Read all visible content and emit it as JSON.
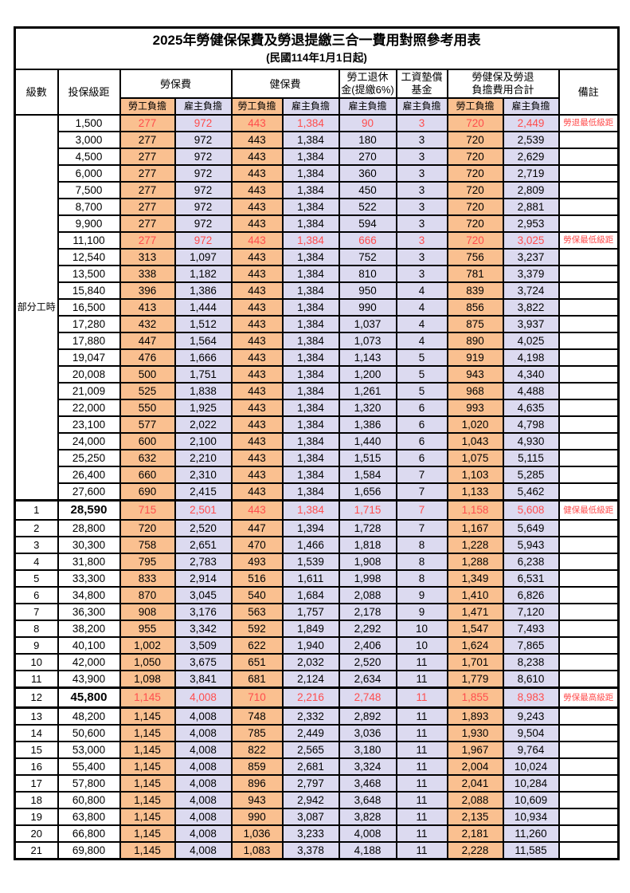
{
  "title": "2025年勞健保保費及勞退提繳三合一費用對照參考用表",
  "subtitle": "(民國114年1月1日起)",
  "colors": {
    "employee_bg": "#FAC090",
    "employer_bg": "#DCDAF0",
    "red_text": "#FF4D4D",
    "border": "#000000"
  },
  "header": {
    "level": "級數",
    "bracket": "投保級距",
    "labor_insurance": "勞保費",
    "health_insurance": "健保費",
    "pension_line1": "勞工退休",
    "pension_line2": "金(提繳6%)",
    "wage_fund_line1": "工資墊償",
    "wage_fund_line2": "基金",
    "total_line1": "勞健保及勞退",
    "total_line2": "負擔費用合計",
    "remark": "備註",
    "employee": "勞工負擔",
    "employer": "雇主負擔"
  },
  "part_time_label": "部分工時",
  "part_time_span": 23,
  "rows": [
    {
      "lv": "",
      "br": "1,500",
      "a": "277",
      "b": "972",
      "c": "443",
      "d": "1,384",
      "e": "90",
      "f": "3",
      "g": "720",
      "h": "2,449",
      "rm": "勞退最低級距",
      "red": true
    },
    {
      "lv": "",
      "br": "3,000",
      "a": "277",
      "b": "972",
      "c": "443",
      "d": "1,384",
      "e": "180",
      "f": "3",
      "g": "720",
      "h": "2,539",
      "rm": ""
    },
    {
      "lv": "",
      "br": "4,500",
      "a": "277",
      "b": "972",
      "c": "443",
      "d": "1,384",
      "e": "270",
      "f": "3",
      "g": "720",
      "h": "2,629",
      "rm": ""
    },
    {
      "lv": "",
      "br": "6,000",
      "a": "277",
      "b": "972",
      "c": "443",
      "d": "1,384",
      "e": "360",
      "f": "3",
      "g": "720",
      "h": "2,719",
      "rm": ""
    },
    {
      "lv": "",
      "br": "7,500",
      "a": "277",
      "b": "972",
      "c": "443",
      "d": "1,384",
      "e": "450",
      "f": "3",
      "g": "720",
      "h": "2,809",
      "rm": ""
    },
    {
      "lv": "",
      "br": "8,700",
      "a": "277",
      "b": "972",
      "c": "443",
      "d": "1,384",
      "e": "522",
      "f": "3",
      "g": "720",
      "h": "2,881",
      "rm": ""
    },
    {
      "lv": "",
      "br": "9,900",
      "a": "277",
      "b": "972",
      "c": "443",
      "d": "1,384",
      "e": "594",
      "f": "3",
      "g": "720",
      "h": "2,953",
      "rm": ""
    },
    {
      "lv": "",
      "br": "11,100",
      "a": "277",
      "b": "972",
      "c": "443",
      "d": "1,384",
      "e": "666",
      "f": "3",
      "g": "720",
      "h": "3,025",
      "rm": "勞保最低級距",
      "red": true
    },
    {
      "lv": "",
      "br": "12,540",
      "a": "313",
      "b": "1,097",
      "c": "443",
      "d": "1,384",
      "e": "752",
      "f": "3",
      "g": "756",
      "h": "3,237",
      "rm": ""
    },
    {
      "lv": "",
      "br": "13,500",
      "a": "338",
      "b": "1,182",
      "c": "443",
      "d": "1,384",
      "e": "810",
      "f": "3",
      "g": "781",
      "h": "3,379",
      "rm": ""
    },
    {
      "lv": "",
      "br": "15,840",
      "a": "396",
      "b": "1,386",
      "c": "443",
      "d": "1,384",
      "e": "950",
      "f": "4",
      "g": "839",
      "h": "3,724",
      "rm": ""
    },
    {
      "lv": "",
      "br": "16,500",
      "a": "413",
      "b": "1,444",
      "c": "443",
      "d": "1,384",
      "e": "990",
      "f": "4",
      "g": "856",
      "h": "3,822",
      "rm": ""
    },
    {
      "lv": "",
      "br": "17,280",
      "a": "432",
      "b": "1,512",
      "c": "443",
      "d": "1,384",
      "e": "1,037",
      "f": "4",
      "g": "875",
      "h": "3,937",
      "rm": ""
    },
    {
      "lv": "",
      "br": "17,880",
      "a": "447",
      "b": "1,564",
      "c": "443",
      "d": "1,384",
      "e": "1,073",
      "f": "4",
      "g": "890",
      "h": "4,025",
      "rm": ""
    },
    {
      "lv": "",
      "br": "19,047",
      "a": "476",
      "b": "1,666",
      "c": "443",
      "d": "1,384",
      "e": "1,143",
      "f": "5",
      "g": "919",
      "h": "4,198",
      "rm": ""
    },
    {
      "lv": "",
      "br": "20,008",
      "a": "500",
      "b": "1,751",
      "c": "443",
      "d": "1,384",
      "e": "1,200",
      "f": "5",
      "g": "943",
      "h": "4,340",
      "rm": ""
    },
    {
      "lv": "",
      "br": "21,009",
      "a": "525",
      "b": "1,838",
      "c": "443",
      "d": "1,384",
      "e": "1,261",
      "f": "5",
      "g": "968",
      "h": "4,488",
      "rm": ""
    },
    {
      "lv": "",
      "br": "22,000",
      "a": "550",
      "b": "1,925",
      "c": "443",
      "d": "1,384",
      "e": "1,320",
      "f": "6",
      "g": "993",
      "h": "4,635",
      "rm": ""
    },
    {
      "lv": "",
      "br": "23,100",
      "a": "577",
      "b": "2,022",
      "c": "443",
      "d": "1,384",
      "e": "1,386",
      "f": "6",
      "g": "1,020",
      "h": "4,798",
      "rm": ""
    },
    {
      "lv": "",
      "br": "24,000",
      "a": "600",
      "b": "2,100",
      "c": "443",
      "d": "1,384",
      "e": "1,440",
      "f": "6",
      "g": "1,043",
      "h": "4,930",
      "rm": ""
    },
    {
      "lv": "",
      "br": "25,250",
      "a": "632",
      "b": "2,210",
      "c": "443",
      "d": "1,384",
      "e": "1,515",
      "f": "6",
      "g": "1,075",
      "h": "5,115",
      "rm": ""
    },
    {
      "lv": "",
      "br": "26,400",
      "a": "660",
      "b": "2,310",
      "c": "443",
      "d": "1,384",
      "e": "1,584",
      "f": "7",
      "g": "1,103",
      "h": "5,285",
      "rm": ""
    },
    {
      "lv": "",
      "br": "27,600",
      "a": "690",
      "b": "2,415",
      "c": "443",
      "d": "1,384",
      "e": "1,656",
      "f": "7",
      "g": "1,133",
      "h": "5,462",
      "rm": ""
    },
    {
      "lv": "1",
      "br": "28,590",
      "a": "715",
      "b": "2,501",
      "c": "443",
      "d": "1,384",
      "e": "1,715",
      "f": "7",
      "g": "1,158",
      "h": "5,608",
      "rm": "健保最低級距",
      "red": true,
      "special": true,
      "thickTop": true
    },
    {
      "lv": "2",
      "br": "28,800",
      "a": "720",
      "b": "2,520",
      "c": "447",
      "d": "1,394",
      "e": "1,728",
      "f": "7",
      "g": "1,167",
      "h": "5,649",
      "rm": ""
    },
    {
      "lv": "3",
      "br": "30,300",
      "a": "758",
      "b": "2,651",
      "c": "470",
      "d": "1,466",
      "e": "1,818",
      "f": "8",
      "g": "1,228",
      "h": "5,943",
      "rm": ""
    },
    {
      "lv": "4",
      "br": "31,800",
      "a": "795",
      "b": "2,783",
      "c": "493",
      "d": "1,539",
      "e": "1,908",
      "f": "8",
      "g": "1,288",
      "h": "6,238",
      "rm": ""
    },
    {
      "lv": "5",
      "br": "33,300",
      "a": "833",
      "b": "2,914",
      "c": "516",
      "d": "1,611",
      "e": "1,998",
      "f": "8",
      "g": "1,349",
      "h": "6,531",
      "rm": ""
    },
    {
      "lv": "6",
      "br": "34,800",
      "a": "870",
      "b": "3,045",
      "c": "540",
      "d": "1,684",
      "e": "2,088",
      "f": "9",
      "g": "1,410",
      "h": "6,826",
      "rm": ""
    },
    {
      "lv": "7",
      "br": "36,300",
      "a": "908",
      "b": "3,176",
      "c": "563",
      "d": "1,757",
      "e": "2,178",
      "f": "9",
      "g": "1,471",
      "h": "7,120",
      "rm": ""
    },
    {
      "lv": "8",
      "br": "38,200",
      "a": "955",
      "b": "3,342",
      "c": "592",
      "d": "1,849",
      "e": "2,292",
      "f": "10",
      "g": "1,547",
      "h": "7,493",
      "rm": ""
    },
    {
      "lv": "9",
      "br": "40,100",
      "a": "1,002",
      "b": "3,509",
      "c": "622",
      "d": "1,940",
      "e": "2,406",
      "f": "10",
      "g": "1,624",
      "h": "7,865",
      "rm": ""
    },
    {
      "lv": "10",
      "br": "42,000",
      "a": "1,050",
      "b": "3,675",
      "c": "651",
      "d": "2,032",
      "e": "2,520",
      "f": "11",
      "g": "1,701",
      "h": "8,238",
      "rm": ""
    },
    {
      "lv": "11",
      "br": "43,900",
      "a": "1,098",
      "b": "3,841",
      "c": "681",
      "d": "2,124",
      "e": "2,634",
      "f": "11",
      "g": "1,779",
      "h": "8,610",
      "rm": ""
    },
    {
      "lv": "12",
      "br": "45,800",
      "a": "1,145",
      "b": "4,008",
      "c": "710",
      "d": "2,216",
      "e": "2,748",
      "f": "11",
      "g": "1,855",
      "h": "8,983",
      "rm": "勞保最高級距",
      "red": true,
      "special": true,
      "thickTop": true,
      "thickBottom": true
    },
    {
      "lv": "13",
      "br": "48,200",
      "a": "1,145",
      "b": "4,008",
      "c": "748",
      "d": "2,332",
      "e": "2,892",
      "f": "11",
      "g": "1,893",
      "h": "9,243",
      "rm": ""
    },
    {
      "lv": "14",
      "br": "50,600",
      "a": "1,145",
      "b": "4,008",
      "c": "785",
      "d": "2,449",
      "e": "3,036",
      "f": "11",
      "g": "1,930",
      "h": "9,504",
      "rm": ""
    },
    {
      "lv": "15",
      "br": "53,000",
      "a": "1,145",
      "b": "4,008",
      "c": "822",
      "d": "2,565",
      "e": "3,180",
      "f": "11",
      "g": "1,967",
      "h": "9,764",
      "rm": ""
    },
    {
      "lv": "16",
      "br": "55,400",
      "a": "1,145",
      "b": "4,008",
      "c": "859",
      "d": "2,681",
      "e": "3,324",
      "f": "11",
      "g": "2,004",
      "h": "10,024",
      "rm": ""
    },
    {
      "lv": "17",
      "br": "57,800",
      "a": "1,145",
      "b": "4,008",
      "c": "896",
      "d": "2,797",
      "e": "3,468",
      "f": "11",
      "g": "2,041",
      "h": "10,284",
      "rm": ""
    },
    {
      "lv": "18",
      "br": "60,800",
      "a": "1,145",
      "b": "4,008",
      "c": "943",
      "d": "2,942",
      "e": "3,648",
      "f": "11",
      "g": "2,088",
      "h": "10,609",
      "rm": ""
    },
    {
      "lv": "19",
      "br": "63,800",
      "a": "1,145",
      "b": "4,008",
      "c": "990",
      "d": "3,087",
      "e": "3,828",
      "f": "11",
      "g": "2,135",
      "h": "10,934",
      "rm": ""
    },
    {
      "lv": "20",
      "br": "66,800",
      "a": "1,145",
      "b": "4,008",
      "c": "1,036",
      "d": "3,233",
      "e": "4,008",
      "f": "11",
      "g": "2,181",
      "h": "11,260",
      "rm": ""
    },
    {
      "lv": "21",
      "br": "69,800",
      "a": "1,145",
      "b": "4,008",
      "c": "1,083",
      "d": "3,378",
      "e": "4,188",
      "f": "11",
      "g": "2,228",
      "h": "11,585",
      "rm": ""
    }
  ]
}
